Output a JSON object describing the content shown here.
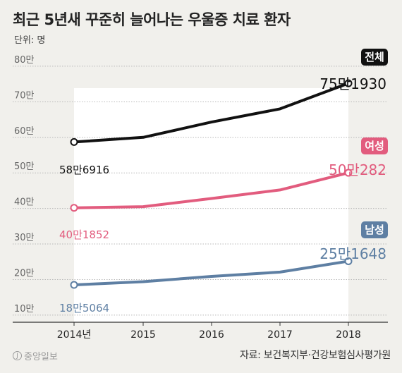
{
  "title": "최근 5년새 꾸준히 늘어나는 우울증 치료 환자",
  "unit": "단위: 명",
  "source": "자료: 보건복지부·건강보험심사평가원",
  "logo": "중앙일보",
  "logo_mark": "J",
  "chart_data": {
    "type": "line",
    "x": [
      "2014년",
      "2015",
      "2016",
      "2017",
      "2018"
    ],
    "yticks": [
      "10만",
      "20만",
      "30만",
      "40만",
      "50만",
      "60만",
      "70만",
      "80만"
    ],
    "ylim": [
      80000,
      820000
    ],
    "grid": true,
    "series": [
      {
        "name": "전체",
        "color": "#111111",
        "values": [
          586916,
          600000,
          643000,
          680000,
          751930
        ],
        "start_label": "58만6916",
        "end_label": "75만1930"
      },
      {
        "name": "여성",
        "color": "#e25c7e",
        "values": [
          401852,
          405000,
          428000,
          452000,
          500282
        ],
        "start_label": "40만1852",
        "end_label": "50만282"
      },
      {
        "name": "남성",
        "color": "#5e7fa3",
        "values": [
          185064,
          194000,
          209000,
          221000,
          251648
        ],
        "start_label": "18만5064",
        "end_label": "25만1648"
      }
    ]
  }
}
